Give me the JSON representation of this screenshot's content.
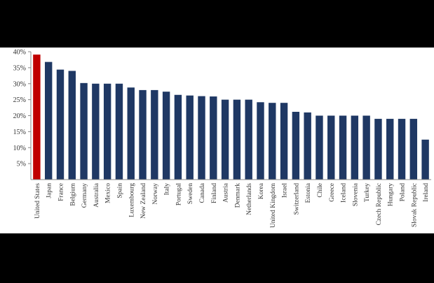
{
  "chart_data": {
    "type": "bar",
    "categories": [
      "United States",
      "Japan",
      "France",
      "Belgium",
      "Germany",
      "Australia",
      "Mexico",
      "Spain",
      "Luxembourg",
      "New Zealand",
      "Norway",
      "Italy",
      "Portugal",
      "Sweden",
      "Canada",
      "Finland",
      "Austria",
      "Denmark",
      "Netherlands",
      "Korea",
      "United Kingdom",
      "Israel",
      "Switzerland",
      "Estonia",
      "Chile",
      "Greece",
      "Iceland",
      "Slovenia",
      "Turkey",
      "Czech Republic",
      "Hungary",
      "Poland",
      "Slovak Republic",
      "Ireland"
    ],
    "values": [
      39.1,
      36.8,
      34.4,
      34.0,
      30.2,
      30.0,
      30.0,
      30.0,
      28.8,
      28.0,
      28.0,
      27.5,
      26.5,
      26.3,
      26.1,
      26.0,
      25.0,
      25.0,
      25.0,
      24.2,
      24.0,
      24.0,
      21.2,
      21.0,
      20.0,
      20.0,
      20.0,
      20.0,
      20.0,
      19.0,
      19.0,
      19.0,
      19.0,
      12.5
    ],
    "ylim": [
      0,
      40
    ],
    "yticks": [
      5,
      10,
      15,
      20,
      25,
      30,
      35,
      40
    ],
    "ytick_labels": [
      "5%",
      "10%",
      "15%",
      "20%",
      "25%",
      "30%",
      "35%",
      "40%"
    ],
    "highlight_category": "United States",
    "colors": {
      "bar": "#1f3864",
      "highlight": "#c00000",
      "highlight_label": "#c00000",
      "label": "#333333"
    },
    "grid": false,
    "legend": "none",
    "title": "",
    "xlabel": "",
    "ylabel": ""
  }
}
